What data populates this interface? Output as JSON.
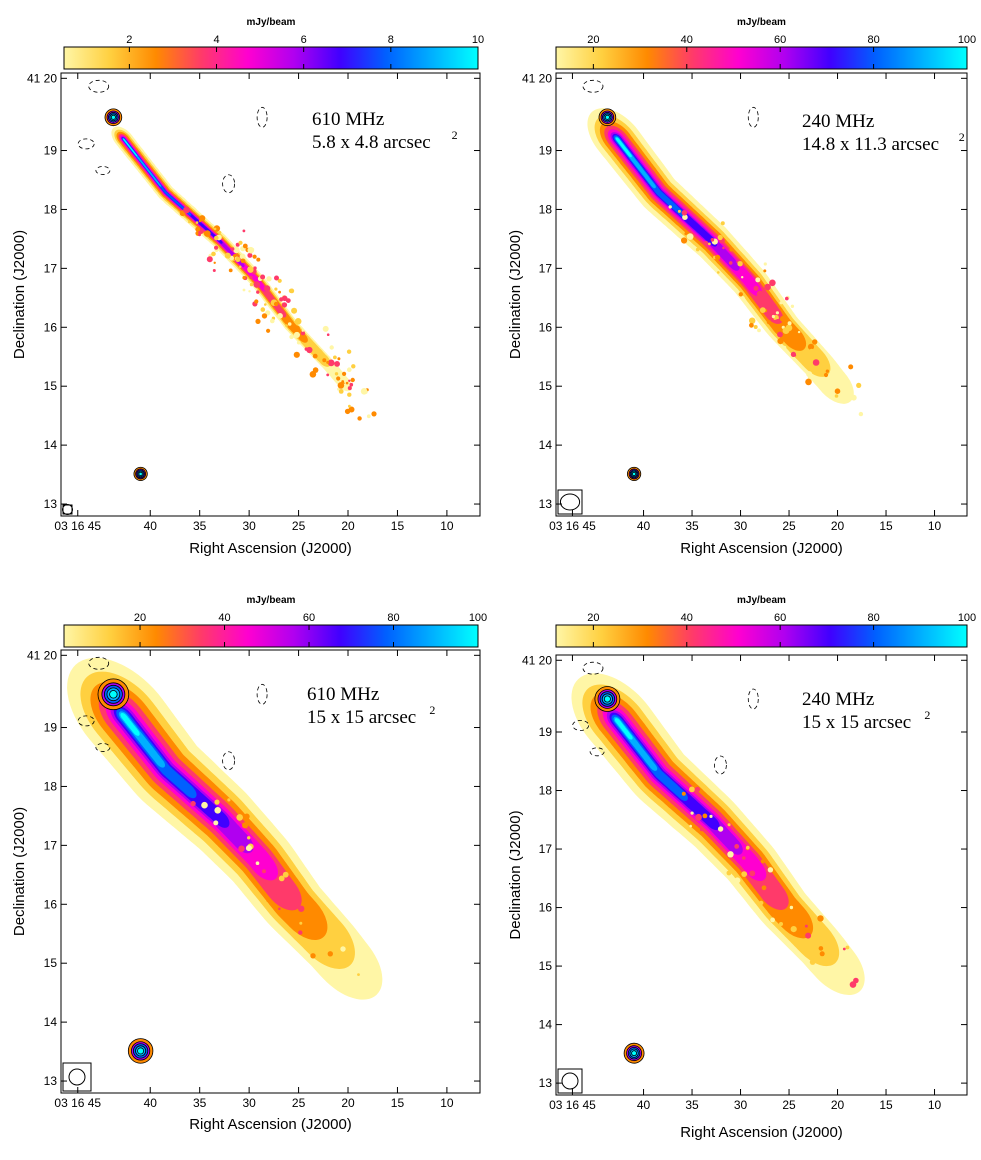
{
  "chart_data": [
    {
      "type": "heatmap",
      "frequency": "610 MHz",
      "resolution": "5.8 x 4.8 arcsec",
      "resolution_exponent": "2",
      "colorbar": {
        "unit": "mJy/beam",
        "ticks": [
          "2",
          "4",
          "6",
          "8",
          "10"
        ],
        "range": [
          0.5,
          10
        ]
      },
      "xlabel": "Right Ascension (J2000)",
      "ylabel": "Declination (J2000)",
      "xticks": [
        "03 16 45",
        "40",
        "35",
        "30",
        "25",
        "20",
        "15",
        "10"
      ],
      "yticks": [
        "41 20",
        "19",
        "18",
        "17",
        "16",
        "15",
        "14",
        "13"
      ],
      "colormap": [
        "#ffffff",
        "#fff6a6",
        "#ffd040",
        "#ff8a00",
        "#ff3a6a",
        "#ff00d0",
        "#b000f0",
        "#4000ff",
        "#0060ff",
        "#00b0ff",
        "#00ffff"
      ]
    },
    {
      "type": "heatmap",
      "frequency": "240 MHz",
      "resolution": "14.8 x 11.3 arcsec",
      "resolution_exponent": "2",
      "colorbar": {
        "unit": "mJy/beam",
        "ticks": [
          "20",
          "40",
          "60",
          "80",
          "100"
        ],
        "range": [
          12,
          100
        ]
      },
      "xlabel": "Right Ascension (J2000)",
      "ylabel": "Declination (J2000)",
      "xticks": [
        "03 16 45",
        "40",
        "35",
        "30",
        "25",
        "20",
        "15",
        "10"
      ],
      "yticks": [
        "41 20",
        "19",
        "18",
        "17",
        "16",
        "15",
        "14",
        "13"
      ],
      "colormap": [
        "#ffffff",
        "#fff6a6",
        "#ffd040",
        "#ff8a00",
        "#ff3a6a",
        "#ff00d0",
        "#b000f0",
        "#4000ff",
        "#0060ff",
        "#00b0ff",
        "#00ffff"
      ]
    },
    {
      "type": "heatmap",
      "frequency": "610 MHz",
      "resolution": "15 x 15 arcsec",
      "resolution_exponent": "2",
      "colorbar": {
        "unit": "mJy/beam",
        "ticks": [
          "20",
          "40",
          "60",
          "80",
          "100"
        ],
        "range": [
          2,
          100
        ]
      },
      "xlabel": "Right Ascension (J2000)",
      "ylabel": "Declination (J2000)",
      "xticks": [
        "03 16 45",
        "40",
        "35",
        "30",
        "25",
        "20",
        "15",
        "10"
      ],
      "yticks": [
        "41 20",
        "19",
        "18",
        "17",
        "16",
        "15",
        "14",
        "13"
      ],
      "colormap": [
        "#ffffff",
        "#fff6a6",
        "#ffd040",
        "#ff8a00",
        "#ff3a6a",
        "#ff00d0",
        "#b000f0",
        "#4000ff",
        "#0060ff",
        "#00b0ff",
        "#00ffff"
      ]
    },
    {
      "type": "heatmap",
      "frequency": "240 MHz",
      "resolution": "15 x 15 arcsec",
      "resolution_exponent": "2",
      "colorbar": {
        "unit": "mJy/beam",
        "ticks": [
          "20",
          "40",
          "60",
          "80",
          "100"
        ],
        "range": [
          12,
          100
        ]
      },
      "xlabel": "Right Ascension (J2000)",
      "ylabel": "Declination (J2000)",
      "xticks": [
        "03 16 45",
        "40",
        "35",
        "30",
        "25",
        "20",
        "15",
        "10"
      ],
      "yticks": [
        "41 20",
        "19",
        "18",
        "17",
        "16",
        "15",
        "14",
        "13"
      ],
      "colormap": [
        "#ffffff",
        "#fff6a6",
        "#ffd040",
        "#ff8a00",
        "#ff3a6a",
        "#ff00d0",
        "#b000f0",
        "#4000ff",
        "#0060ff",
        "#00b0ff",
        "#00ffff"
      ]
    }
  ]
}
